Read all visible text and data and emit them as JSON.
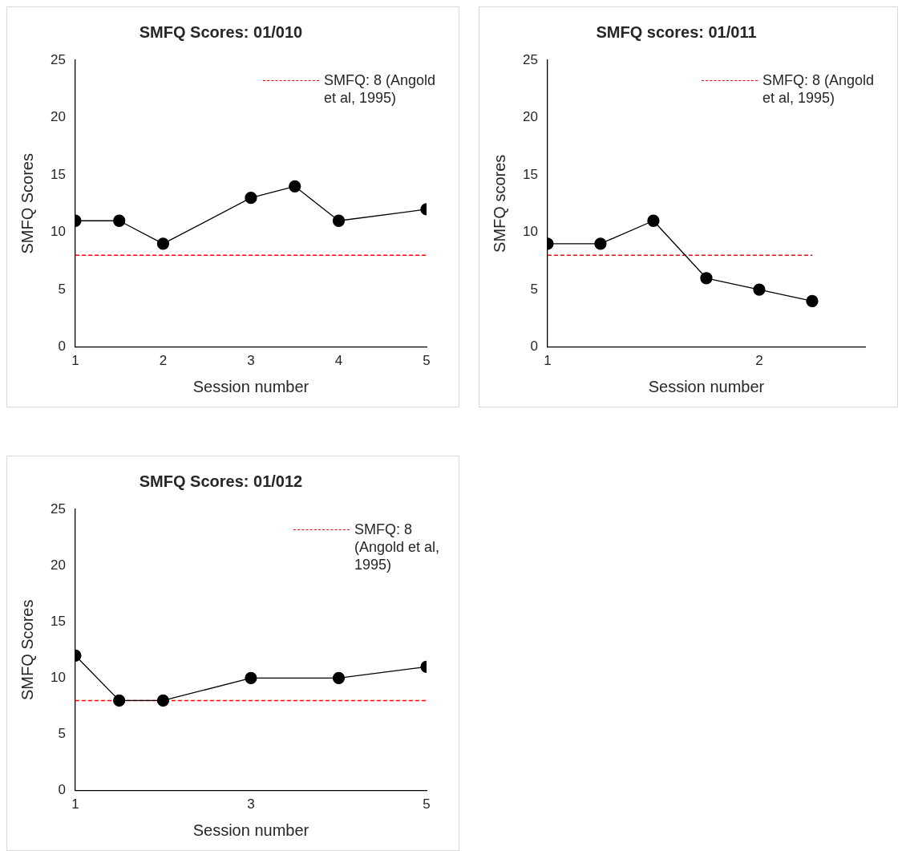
{
  "chart_data": [
    {
      "type": "line",
      "title": "SMFQ Scores: 01/010",
      "xlabel": "Session number",
      "ylabel": "SMFQ Scores",
      "xlim": [
        1,
        5
      ],
      "xticks": [
        1,
        2,
        3,
        4,
        5
      ],
      "ylim": [
        0,
        25
      ],
      "yticks": [
        0,
        5,
        10,
        15,
        20,
        25
      ],
      "grid": false,
      "legend": "top right",
      "series": [
        {
          "color": "#000000",
          "marker": "circle",
          "x": [
            1,
            1.5,
            2,
            3,
            3.5,
            4,
            5
          ],
          "values": [
            11,
            11,
            9,
            13,
            14,
            11,
            12
          ]
        },
        {
          "name": "SMFQ: 8 (Angold et al, 1995)",
          "color": "#ff0000",
          "marker": "none",
          "line_style": "dashed",
          "x": [
            1,
            5
          ],
          "values": [
            8,
            8
          ]
        }
      ]
    },
    {
      "type": "line",
      "title": "SMFQ scores: 01/011",
      "xlabel": "Session number",
      "ylabel": "SMFQ scores",
      "xlim": [
        1,
        2.5
      ],
      "xticks": [
        1,
        2
      ],
      "ylim": [
        0,
        25
      ],
      "yticks": [
        0,
        5,
        10,
        15,
        20,
        25
      ],
      "grid": false,
      "legend": "top right",
      "series": [
        {
          "color": "#000000",
          "marker": "circle",
          "x": [
            1,
            1.25,
            1.5,
            1.75,
            2,
            2.25
          ],
          "values": [
            9,
            9,
            11,
            6,
            5,
            4
          ]
        },
        {
          "name": "SMFQ: 8 (Angold et al, 1995)",
          "color": "#ff0000",
          "marker": "none",
          "line_style": "dashed",
          "x": [
            1,
            2.25
          ],
          "values": [
            8,
            8
          ]
        }
      ]
    },
    {
      "type": "line",
      "title": "SMFQ Scores: 01/012",
      "xlabel": "Session number",
      "ylabel": "SMFQ Scores",
      "xlim": [
        1,
        5
      ],
      "xticks": [
        1,
        3,
        5
      ],
      "ylim": [
        0,
        25
      ],
      "yticks": [
        0,
        5,
        10,
        15,
        20,
        25
      ],
      "grid": false,
      "legend": "top right",
      "series": [
        {
          "color": "#000000",
          "marker": "circle",
          "x": [
            1,
            1.5,
            2,
            3,
            4,
            5
          ],
          "values": [
            12,
            8,
            8,
            10,
            10,
            11
          ]
        },
        {
          "name": "SMFQ: 8 (Angold et al, 1995)",
          "color": "#ff0000",
          "marker": "none",
          "line_style": "dashed",
          "x": [
            1,
            5
          ],
          "values": [
            8,
            8
          ]
        }
      ]
    }
  ]
}
